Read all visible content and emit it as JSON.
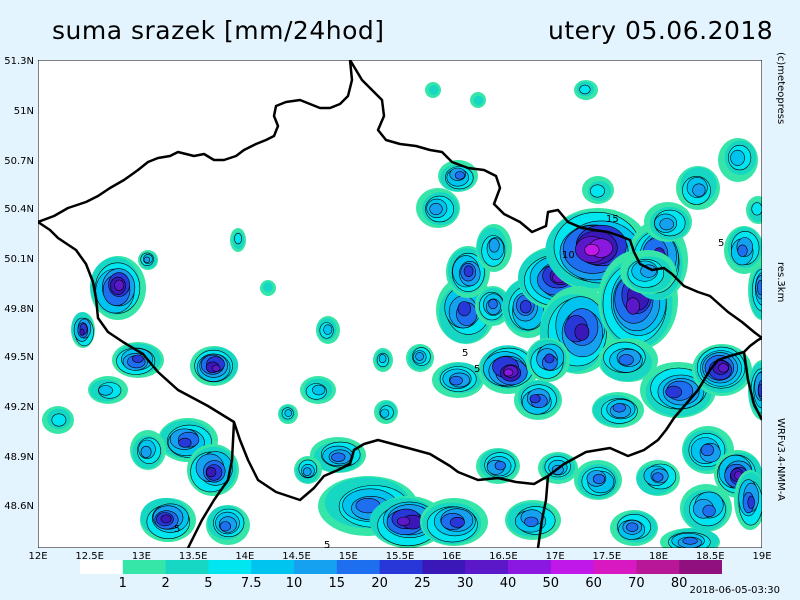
{
  "header": {
    "title_left": "suma srazek [mm/24hod]",
    "title_right": "utery 05.06.2018"
  },
  "map": {
    "lon_labels": [
      "12E",
      "12.5E",
      "13E",
      "13.5E",
      "14E",
      "14.5E",
      "15E",
      "15.5E",
      "16E",
      "16.5E",
      "17E",
      "17.5E",
      "18E",
      "18.5E",
      "19E"
    ],
    "lat_labels": [
      "51.3N",
      "51N",
      "50.7N",
      "50.4N",
      "50.1N",
      "49.8N",
      "49.5N",
      "49.2N",
      "48.9N",
      "48.6N"
    ],
    "lon_range": [
      12,
      19
    ],
    "lat_range": [
      48.35,
      51.35
    ],
    "contour_labels": [
      "5",
      "5",
      "10",
      "15",
      "5",
      "5",
      "5"
    ],
    "border_color": "#000000",
    "background": "#ffffff"
  },
  "side_labels": {
    "copyright": "(c)meteopress",
    "resolution": "res.3km",
    "model": "WRFv3.4-NMM-A"
  },
  "colorbar": {
    "ticks": [
      "1",
      "2",
      "5",
      "7.5",
      "10",
      "15",
      "20",
      "25",
      "30",
      "40",
      "50",
      "60",
      "70",
      "80"
    ],
    "colors": [
      "#ffffff",
      "#35e6a8",
      "#16d6c4",
      "#00e6f0",
      "#00c4f0",
      "#16a0f0",
      "#1e6ef0",
      "#2838d8",
      "#3a18b8",
      "#5a18c8",
      "#8a18e0",
      "#c018e8",
      "#d818c0",
      "#b81898",
      "#901080"
    ]
  },
  "timestamp": "2018-06-05-03:30"
}
